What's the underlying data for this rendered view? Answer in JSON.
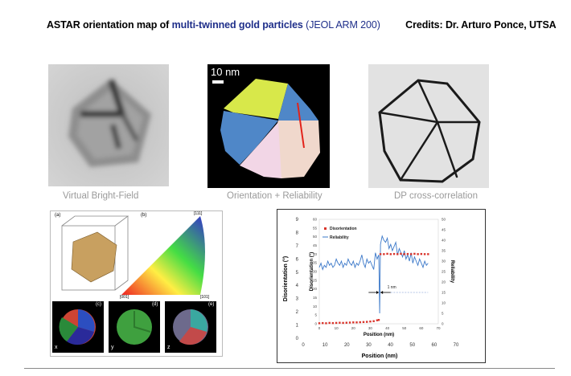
{
  "header": {
    "title_part1": "ASTAR orientation map of",
    "title_part2": "multi-twinned gold particles",
    "title_part3": "(JEOL  ARM 200)",
    "credits": "Credits:  Dr. Arturo Ponce,   UTSA"
  },
  "panels": {
    "bright_field_caption": "Virtual Bright-Field",
    "orientation_caption": "Orientation + Reliability",
    "orientation_scale": "10 nm",
    "cross_corr_caption": "DP cross-correlation"
  },
  "figure_left": {
    "label_a": "(a)",
    "label_b": "(b)",
    "label_c": "(c)",
    "label_d": "(d)",
    "label_e": "(e)",
    "ipf_top": "[111]",
    "ipf_left": "[001]",
    "ipf_right": "[101]",
    "axis_x": "x",
    "axis_y": "y",
    "axis_z": "z"
  },
  "chart_data": {
    "type": "line",
    "xlabel_inner": "Position (nm)",
    "xlabel_outer": "Position (nm)",
    "ylabel_left_outer": "Disorientation (°)",
    "ylabel_left_inner": "Disorientation (°)",
    "ylabel_right": "Reliability",
    "annotation": "1 nm",
    "outer_x_ticks": [
      "0",
      "10",
      "20",
      "30",
      "40",
      "50",
      "60",
      "70"
    ],
    "outer_y_ticks": [
      "0",
      "1",
      "2",
      "3",
      "4",
      "5",
      "6",
      "7",
      "8",
      "9"
    ],
    "inner_x_ticks": [
      "0",
      "10",
      "20",
      "30",
      "40",
      "50",
      "60",
      "70"
    ],
    "inner_y_ticks": [
      "0",
      "5",
      "10",
      "15",
      "20",
      "25",
      "30",
      "35",
      "40",
      "45",
      "50",
      "55",
      "60"
    ],
    "right_y_ticks": [
      "0",
      "5",
      "10",
      "15",
      "20",
      "25",
      "30",
      "35",
      "40",
      "45",
      "50"
    ],
    "xlim": [
      0,
      70
    ],
    "ylim_left": [
      0,
      60
    ],
    "ylim_right": [
      0,
      50
    ],
    "series": [
      {
        "name": "Disorientation",
        "color": "#d9342b",
        "x": [
          0,
          2,
          4,
          6,
          8,
          10,
          12,
          14,
          16,
          18,
          20,
          22,
          24,
          26,
          28,
          30,
          32,
          34,
          35,
          36,
          38,
          40,
          42,
          44,
          46,
          48,
          50,
          52,
          54,
          56,
          58,
          60,
          62,
          64
        ],
        "y": [
          0.3,
          0.4,
          0.3,
          0.5,
          0.4,
          0.5,
          0.6,
          0.5,
          0.6,
          0.7,
          0.8,
          0.8,
          0.9,
          1.0,
          1.1,
          1.3,
          1.5,
          2.0,
          2.2,
          40,
          40,
          40.2,
          40,
          40.1,
          40,
          40.2,
          40,
          40.1,
          40,
          40.2,
          40,
          40.1,
          40,
          40
        ]
      },
      {
        "name": "Reliability",
        "color": "#3b78c9",
        "x": [
          0,
          1,
          2,
          3,
          4,
          5,
          6,
          7,
          8,
          9,
          10,
          11,
          12,
          13,
          14,
          15,
          16,
          17,
          18,
          19,
          20,
          21,
          22,
          23,
          24,
          25,
          26,
          27,
          28,
          29,
          30,
          31,
          32,
          33,
          34,
          35,
          35.5,
          36,
          37,
          38,
          39,
          40,
          41,
          42,
          43,
          44,
          45,
          46,
          47,
          48,
          49,
          50,
          51,
          52,
          53,
          54,
          55,
          56,
          57,
          58,
          59,
          60,
          61,
          62,
          63,
          64
        ],
        "y": [
          27,
          29,
          26,
          28,
          27,
          30,
          28,
          29,
          27,
          28,
          31,
          29,
          28,
          30,
          27,
          29,
          28,
          31,
          29,
          28,
          30,
          27,
          29,
          28,
          30,
          33,
          29,
          27,
          31,
          29,
          30,
          28,
          26,
          34,
          31,
          33,
          5,
          38,
          42,
          40,
          39,
          41,
          36,
          38,
          35,
          37,
          39,
          33,
          36,
          34,
          32,
          35,
          31,
          33,
          30,
          34,
          29,
          32,
          30,
          28,
          31,
          29,
          27,
          30,
          28,
          29
        ]
      }
    ]
  }
}
